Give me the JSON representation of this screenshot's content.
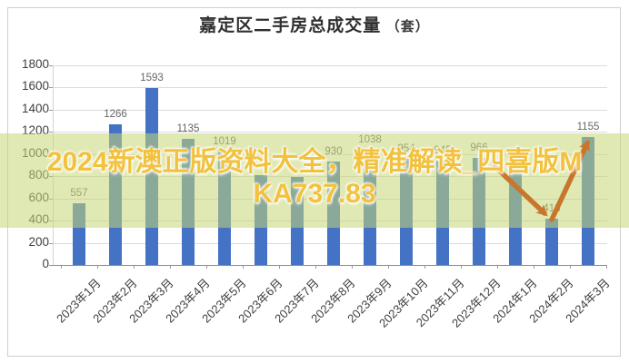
{
  "title": {
    "main": "嘉定区二手房总成交量",
    "unit": "（套）"
  },
  "chart_data": {
    "type": "bar",
    "title": "嘉定区二手房总成交量（套）",
    "xlabel": "",
    "ylabel": "",
    "categories": [
      "2023年1月",
      "2023年2月",
      "2023年3月",
      "2023年4月",
      "2023年5月",
      "2023年6月",
      "2023年7月",
      "2023年8月",
      "2023年9月",
      "2023年10月",
      "2023年11月",
      "2023年12月",
      "2024年1月",
      "2024年2月",
      "2024年3月"
    ],
    "values": [
      557,
      1266,
      1593,
      1135,
      1019,
      810,
      795,
      930,
      1038,
      954,
      945,
      966,
      904,
      418,
      1155
    ],
    "data_labels": [
      "557",
      "1266",
      "1593",
      "1135",
      "1019",
      "",
      "",
      "930",
      "1038",
      "954",
      "945",
      "966",
      "904",
      "418",
      "1155"
    ],
    "ylim": [
      0,
      1800
    ],
    "yticks": [
      0,
      200,
      400,
      600,
      800,
      1000,
      1200,
      1400,
      1600,
      1800
    ],
    "grid": true,
    "legend": "none",
    "bar_color": "#4472C4"
  },
  "watermark": {
    "line1": "2024新澳正版资料大全，精准解读_四喜版M",
    "line2": "KA737.83",
    "text_color": "#F2C23E",
    "band_color": "rgba(198,215,118,0.55)"
  },
  "annotation": {
    "shape": "down-then-up-trend-arrow",
    "color": "#C8762C",
    "low_point_label": "418",
    "rebound_point_label": "1155"
  },
  "colors": {
    "bar": "#4472C4",
    "gridline": "#dcdcdc",
    "axis": "#8f8f8f",
    "data_label": "#666666"
  }
}
